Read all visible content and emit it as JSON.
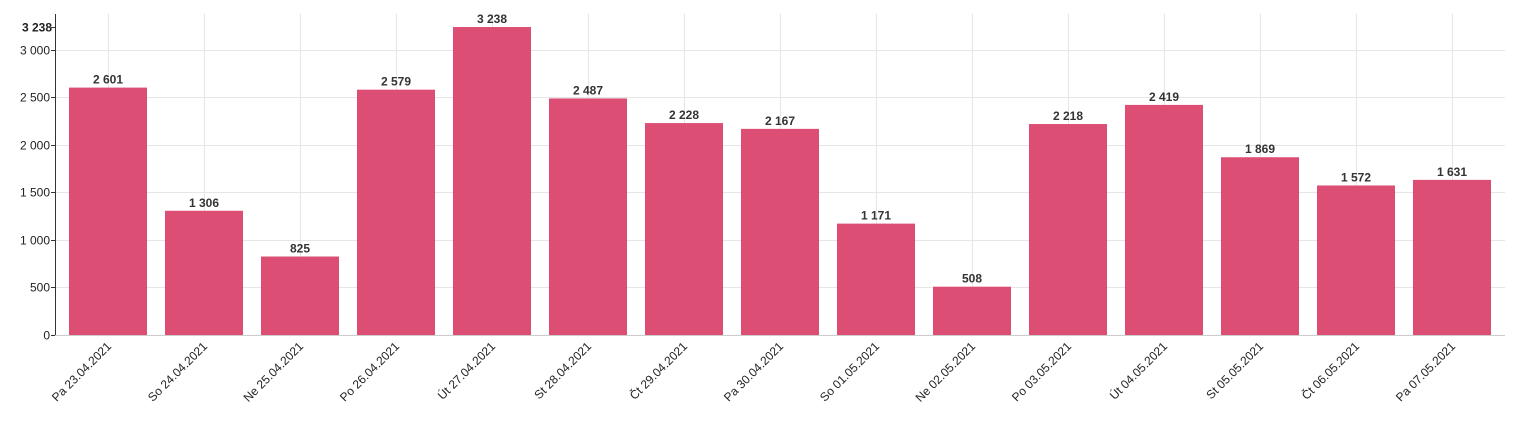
{
  "chart_data": {
    "type": "bar",
    "title": "",
    "xlabel": "",
    "ylabel": "",
    "ylim": [
      0,
      3238
    ],
    "grid": true,
    "bar_color": "#dc4a72",
    "y_ticks": [
      0,
      500,
      1000,
      1500,
      2000,
      2500,
      3000
    ],
    "y_tick_labels": [
      "0",
      "500",
      "1 000",
      "1 500",
      "2 000",
      "2 500",
      "3 000"
    ],
    "y_max_label": "3 238",
    "categories": [
      "Pa 23.04.2021",
      "So 24.04.2021",
      "Ne 25.04.2021",
      "Po 26.04.2021",
      "Út 27.04.2021",
      "St 28.04.2021",
      "Čt 29.04.2021",
      "Pa 30.04.2021",
      "So 01.05.2021",
      "Ne 02.05.2021",
      "Po 03.05.2021",
      "Út 04.05.2021",
      "St 05.05.2021",
      "Čt 06.05.2021",
      "Pa 07.05.2021"
    ],
    "values": [
      2601,
      1306,
      825,
      2579,
      3238,
      2487,
      2228,
      2167,
      1171,
      508,
      2218,
      2419,
      1869,
      1572,
      1631
    ],
    "value_labels": [
      "2 601",
      "1 306",
      "825",
      "2 579",
      "3 238",
      "2 487",
      "2 228",
      "2 167",
      "1 171",
      "508",
      "2 218",
      "2 419",
      "1 869",
      "1 572",
      "1 631"
    ]
  }
}
